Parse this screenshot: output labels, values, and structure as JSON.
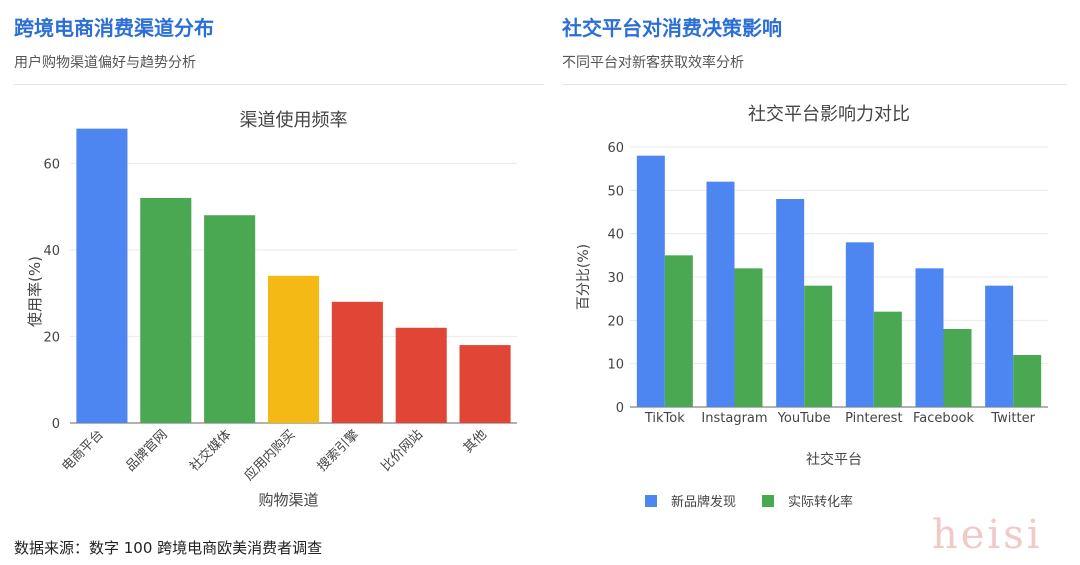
{
  "left_panel": {
    "title": "跨境电商消费渠道分布",
    "subtitle": "用户购物渠道偏好与趋势分析"
  },
  "right_panel": {
    "title": "社交平台对消费决策影响",
    "subtitle": "不同平台对新客获取效率分析"
  },
  "source": "数据来源：数字 100 跨境电商欧美消费者调查",
  "watermark": "heisi",
  "chart_data": [
    {
      "type": "bar",
      "title": "渠道使用频率",
      "xlabel": "购物渠道",
      "ylabel": "使用率(%)",
      "categories": [
        "电商平台",
        "品牌官网",
        "社交媒体",
        "应用内购买",
        "搜索引擎",
        "比价网站",
        "其他"
      ],
      "values": [
        68,
        52,
        48,
        34,
        28,
        22,
        18
      ],
      "colors": [
        "#4d86f0",
        "#4aa852",
        "#4aa852",
        "#f4b915",
        "#e04535",
        "#e04535",
        "#e04535"
      ],
      "ylim": [
        0,
        70
      ],
      "yticks": [
        0,
        20,
        40,
        60
      ],
      "grid": true
    },
    {
      "type": "bar",
      "title": "社交平台影响力对比",
      "xlabel": "社交平台",
      "ylabel": "百分比(%)",
      "categories": [
        "TikTok",
        "Instagram",
        "YouTube",
        "Pinterest",
        "Facebook",
        "Twitter"
      ],
      "series": [
        {
          "name": "新品牌发现",
          "values": [
            58,
            52,
            48,
            38,
            32,
            28
          ],
          "color": "#4d86f0"
        },
        {
          "name": "实际转化率",
          "values": [
            35,
            32,
            28,
            22,
            18,
            12
          ],
          "color": "#4aa852"
        }
      ],
      "ylim": [
        0,
        60
      ],
      "yticks": [
        0,
        10,
        20,
        30,
        40,
        50,
        60
      ],
      "grid": true,
      "legend": "bottom"
    }
  ]
}
